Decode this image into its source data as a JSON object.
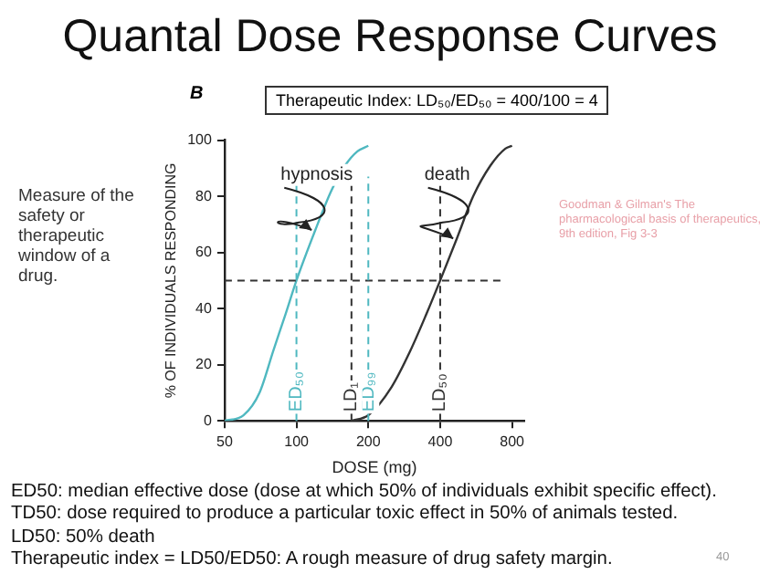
{
  "chart_data": {
    "type": "line",
    "title": "Quantal Dose Response Curves",
    "xlabel": "DOSE (mg)",
    "ylabel": "% OF INDIVIDUALS RESPONDING",
    "log": "x",
    "xlim": [
      50,
      900
    ],
    "xticks": [
      50,
      100,
      200,
      400,
      800
    ],
    "ylim": [
      0,
      100
    ],
    "yticks": [
      0,
      20,
      40,
      60,
      80,
      100
    ],
    "grid": false,
    "legend": false,
    "marker": "none",
    "line_style": "solid",
    "series": [
      {
        "name": "hypnosis",
        "color": "#4fb8c0",
        "x": [
          50,
          60,
          70,
          80,
          90,
          100,
          120,
          140,
          160,
          180,
          200
        ],
        "values": [
          0,
          2,
          10,
          25,
          38,
          50,
          68,
          82,
          91,
          96,
          98
        ]
      },
      {
        "name": "death",
        "color": "#333333",
        "x": [
          170,
          200,
          250,
          300,
          350,
          400,
          470,
          550,
          650,
          750,
          800
        ],
        "values": [
          0,
          2,
          12,
          25,
          38,
          50,
          65,
          80,
          91,
          97,
          98
        ]
      }
    ],
    "ref_lines": [
      {
        "axis": "y",
        "value": 50,
        "color": "#333333",
        "line_style": "dashed"
      },
      {
        "axis": "x",
        "value": 100,
        "label": "ED₅₀",
        "color": "#4fb8c0",
        "line_style": "dashed"
      },
      {
        "axis": "x",
        "value": 200,
        "label": "ED₉₉",
        "color": "#4fb8c0",
        "line_style": "dashed"
      },
      {
        "axis": "x",
        "value": 170,
        "label": "LD₁",
        "color": "#333333",
        "line_style": "dashed"
      },
      {
        "axis": "x",
        "value": 400,
        "label": "LD₅₀",
        "color": "#333333",
        "line_style": "dashed"
      }
    ],
    "annotations": [
      "B",
      "Therapeutic Index: LD₅₀/ED₅₀ = 400/100 = 4",
      "Measure of the safety or therapeutic window of a drug.",
      "Goodman & Gilman's The pharmacological basis of therapeutics, 9th edition, Fig 3-3",
      "ED50: median effective dose (dose at which 50% of individuals exhibit specific effect).",
      "TD50: dose required to produce a particular toxic effect in 50% of animals tested.",
      "LD50: 50% death",
      "Therapeutic index = LD50/ED50: A rough measure of drug safety margin.",
      "40"
    ]
  }
}
